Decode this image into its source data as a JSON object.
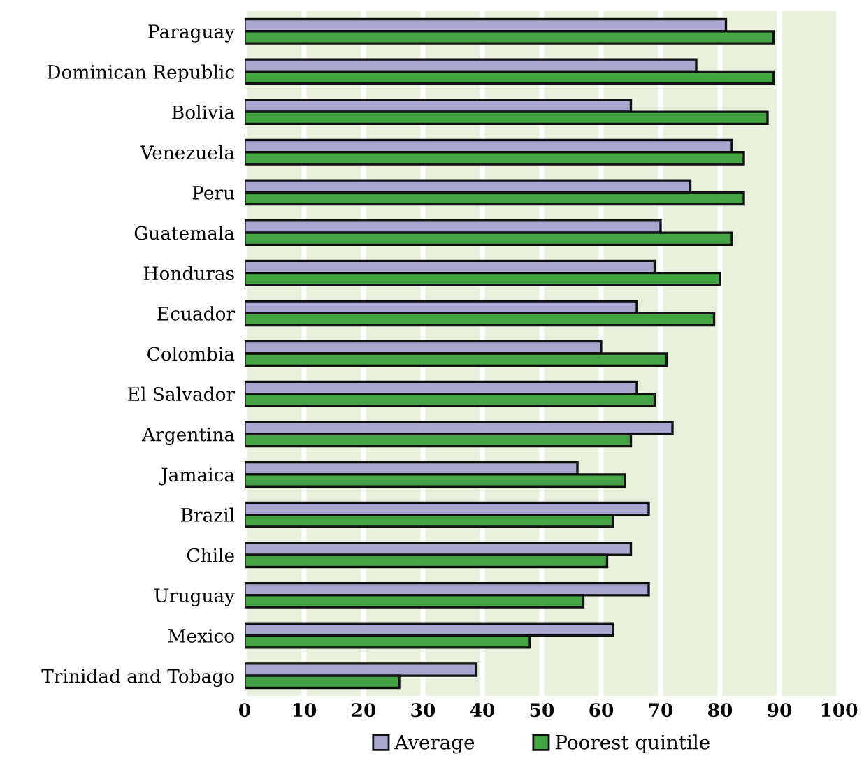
{
  "chart_data": {
    "type": "bar",
    "orientation": "horizontal",
    "categories": [
      "Paraguay",
      "Dominican Republic",
      "Bolivia",
      "Venezuela",
      "Peru",
      "Guatemala",
      "Honduras",
      "Ecuador",
      "Colombia",
      "El Salvador",
      "Argentina",
      "Jamaica",
      "Brazil",
      "Chile",
      "Uruguay",
      "Mexico",
      "Trinidad and Tobago"
    ],
    "series": [
      {
        "name": "Average",
        "color": "#a9a6cf",
        "values": [
          81,
          76,
          65,
          82,
          75,
          70,
          69,
          66,
          60,
          66,
          72,
          56,
          68,
          65,
          68,
          62,
          39
        ]
      },
      {
        "name": "Poorest quintile",
        "color": "#44a343",
        "values": [
          89,
          89,
          88,
          84,
          84,
          82,
          80,
          79,
          71,
          69,
          65,
          64,
          62,
          61,
          57,
          48,
          26
        ]
      }
    ],
    "xlim": [
      0,
      100
    ],
    "xticks": [
      0,
      10,
      20,
      30,
      40,
      50,
      60,
      70,
      80,
      90,
      100
    ],
    "grid": "x",
    "legend": "bottom"
  }
}
